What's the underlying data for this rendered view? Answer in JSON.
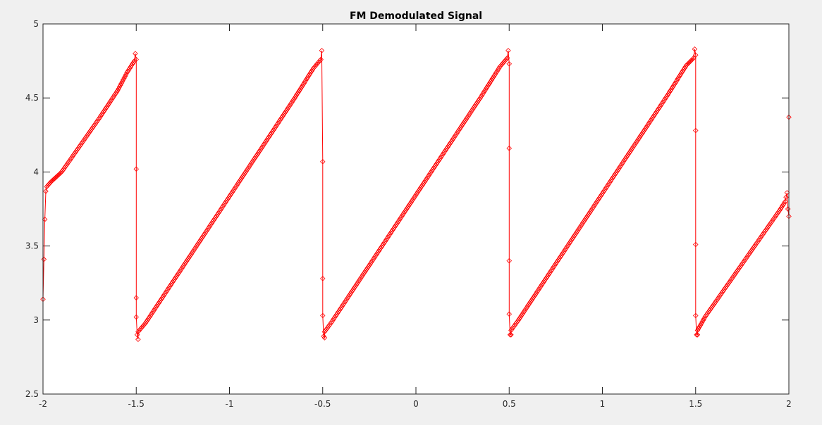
{
  "chart_data": {
    "type": "line",
    "title": "FM Demodulated Signal",
    "xlabel": "",
    "ylabel": "",
    "xlim": [
      -2,
      2
    ],
    "ylim": [
      2.5,
      5
    ],
    "x_ticks": [
      "-2",
      "-1.5",
      "-1",
      "-0.5",
      "0",
      "0.5",
      "1",
      "1.5",
      "2"
    ],
    "y_ticks": [
      "2.5",
      "3",
      "3.5",
      "4",
      "4.5",
      "5"
    ],
    "grid": false,
    "legend": "none",
    "marker": "diamond",
    "colors": {
      "line": "#ff0000",
      "axes_background": "#ffffff",
      "figure_background": "#f0f0f0",
      "axis": "#262626"
    },
    "series": [
      {
        "x": [
          -2.0,
          -1.99,
          -1.985,
          -1.98,
          -1.96,
          -1.9,
          -1.8,
          -1.7,
          -1.6,
          -1.55,
          -1.51,
          -1.505,
          -1.5,
          -1.5,
          -1.5,
          -1.5,
          -1.495,
          -1.49,
          -1.49,
          -1.45,
          -1.35,
          -1.25,
          -1.15,
          -1.05,
          -0.95,
          -0.85,
          -0.75,
          -0.65,
          -0.55,
          -0.51,
          -0.505,
          -0.5,
          -0.5,
          -0.5,
          -0.495,
          -0.49,
          -0.49,
          -0.45,
          -0.35,
          -0.25,
          -0.15,
          -0.05,
          0.05,
          0.15,
          0.25,
          0.35,
          0.45,
          0.49,
          0.495,
          0.5,
          0.5,
          0.5,
          0.5,
          0.505,
          0.51,
          0.51,
          0.55,
          0.65,
          0.75,
          0.85,
          0.95,
          1.05,
          1.15,
          1.25,
          1.35,
          1.45,
          1.49,
          1.495,
          1.5,
          1.5,
          1.5,
          1.5,
          1.505,
          1.51,
          1.51,
          1.55,
          1.65,
          1.75,
          1.85,
          1.95,
          1.98,
          1.99,
          1.995,
          2.0,
          2.0
        ],
        "y": [
          3.14,
          3.68,
          3.87,
          3.9,
          3.93,
          4.0,
          4.18,
          4.36,
          4.55,
          4.67,
          4.75,
          4.8,
          4.76,
          4.02,
          3.15,
          3.02,
          2.9,
          2.87,
          2.92,
          2.98,
          3.17,
          3.36,
          3.55,
          3.74,
          3.93,
          4.12,
          4.31,
          4.5,
          4.7,
          4.76,
          4.82,
          4.07,
          3.28,
          3.03,
          2.89,
          2.88,
          2.92,
          2.99,
          3.18,
          3.37,
          3.56,
          3.75,
          3.94,
          4.13,
          4.32,
          4.51,
          4.71,
          4.77,
          4.82,
          4.73,
          4.16,
          3.4,
          3.04,
          2.9,
          2.9,
          2.93,
          3.0,
          3.19,
          3.38,
          3.57,
          3.76,
          3.95,
          4.14,
          4.33,
          4.52,
          4.72,
          4.77,
          4.83,
          4.79,
          4.28,
          3.51,
          3.03,
          2.9,
          2.9,
          2.93,
          3.02,
          3.2,
          3.38,
          3.56,
          3.74,
          3.8,
          3.86,
          3.75,
          3.7,
          4.37
        ]
      }
    ]
  }
}
